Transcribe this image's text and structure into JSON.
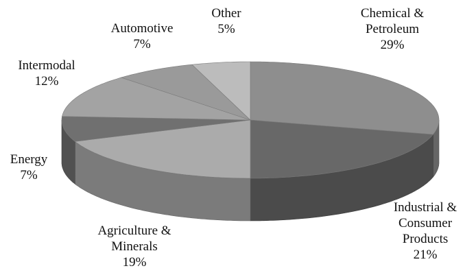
{
  "chart_data": {
    "type": "pie",
    "categories": [
      "Chemical & Petroleum",
      "Industrial & Consumer Products",
      "Agriculture & Minerals",
      "Energy",
      "Intermodal",
      "Automotive",
      "Other"
    ],
    "values": [
      29,
      21,
      19,
      7,
      12,
      7,
      5
    ],
    "value_labels": [
      "29%",
      "21%",
      "19%",
      "7%",
      "12%",
      "7%",
      "5%"
    ],
    "colors": [
      "#8e8e8e",
      "#686868",
      "#ababab",
      "#707070",
      "#a3a3a3",
      "#9a9a9a",
      "#bcbcbc"
    ]
  }
}
